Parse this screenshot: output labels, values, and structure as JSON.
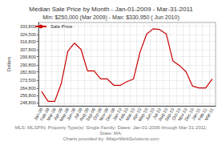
{
  "chart_data": {
    "type": "line",
    "title": "Median Sale Price by Month - Jan-01-2009 - Mar-31-2011",
    "subtitle": "Min: $250,000 (Mar 2009) - Max: $330,950 ( Jun 2010)",
    "ylabel": "Dollars",
    "categories": [
      "Jan-09",
      "Feb-09",
      "Mar-09",
      "Apr-09",
      "May-09",
      "Jun-09",
      "Jul-09",
      "Aug-09",
      "Sep-09",
      "Oct-09",
      "Nov-09",
      "Dec-09",
      "Jan-10",
      "Feb-10",
      "Mar-10",
      "Apr-10",
      "May-10",
      "Jun-10",
      "Jul-10",
      "Aug-10",
      "Sep-10",
      "Oct-10",
      "Nov-10",
      "Dec-10",
      "Jan-11",
      "Feb-11",
      "Mar-11"
    ],
    "series": [
      {
        "name": "Sale Price",
        "color": "#cc0000",
        "values": [
          261000,
          250000,
          250000,
          270000,
          306000,
          315000,
          308000,
          284000,
          284000,
          275000,
          275000,
          268000,
          268000,
          272000,
          275000,
          305000,
          325000,
          330950,
          330000,
          325000,
          295000,
          290000,
          283000,
          267000,
          265000,
          265000,
          275000
        ]
      }
    ],
    "ylim": [
      245000,
      338000
    ],
    "yticks": [
      {
        "value": 248800,
        "label": "248,800"
      },
      {
        "value": 256800,
        "label": "256,800"
      },
      {
        "value": 264800,
        "label": "264,800"
      },
      {
        "value": 273500,
        "label": "273,500"
      },
      {
        "value": 282800,
        "label": "282,800"
      },
      {
        "value": 290800,
        "label": "290,800"
      },
      {
        "value": 299800,
        "label": "299,800"
      },
      {
        "value": 307800,
        "label": "307,800"
      },
      {
        "value": 316800,
        "label": "316,800"
      },
      {
        "value": 324500,
        "label": "324,500"
      },
      {
        "value": 333800,
        "label": "333,800"
      }
    ],
    "grid": true,
    "legend": "upper left",
    "annotations": [
      "MLS: MLSPIN; Property Type(s): Single Family; Dates: Jan-01-2009 through Mar-31-2011;",
      "State: MA;",
      "Charts provided by: iMajorWebSolutions.com"
    ]
  }
}
